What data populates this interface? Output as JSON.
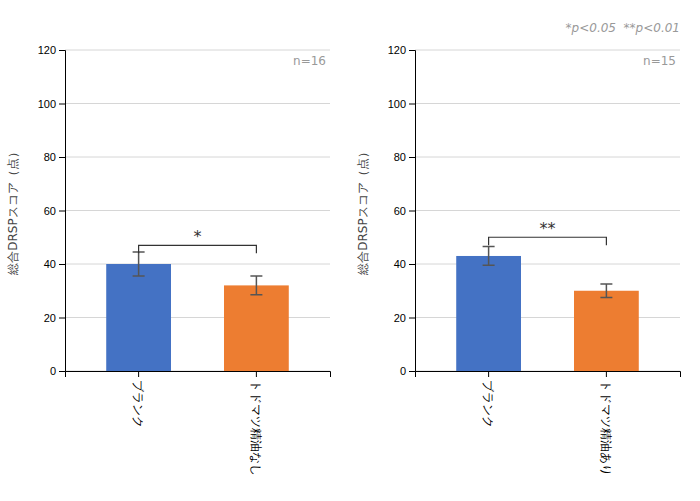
{
  "chart_data": [
    {
      "type": "bar",
      "categories": [
        "ブランク",
        "トドマツ精油なし"
      ],
      "values": [
        40,
        32
      ],
      "errors": [
        4.5,
        3.5
      ],
      "colors": [
        "#4472C4",
        "#ED7D31"
      ],
      "ylabel": "総合DRSPスコア（点）",
      "ylim": [
        0,
        120
      ],
      "yticks": [
        0,
        20,
        40,
        60,
        80,
        100,
        120
      ],
      "grid": true,
      "annotations": [
        {
          "text": "n=16"
        },
        {
          "text": "*",
          "y": 47
        }
      ]
    },
    {
      "type": "bar",
      "categories": [
        "ブランク",
        "トドマツ精油あり"
      ],
      "values": [
        43,
        30
      ],
      "errors": [
        3.5,
        2.5
      ],
      "colors": [
        "#4472C4",
        "#ED7D31"
      ],
      "ylabel": "総合DRSPスコア（点）",
      "ylim": [
        0,
        120
      ],
      "yticks": [
        0,
        20,
        40,
        60,
        80,
        100,
        120
      ],
      "grid": true,
      "annotations": [
        {
          "text": "n=15"
        },
        {
          "text": "**",
          "y": 50
        },
        {
          "text": "*p<0.05  **p<0.01"
        }
      ]
    }
  ]
}
